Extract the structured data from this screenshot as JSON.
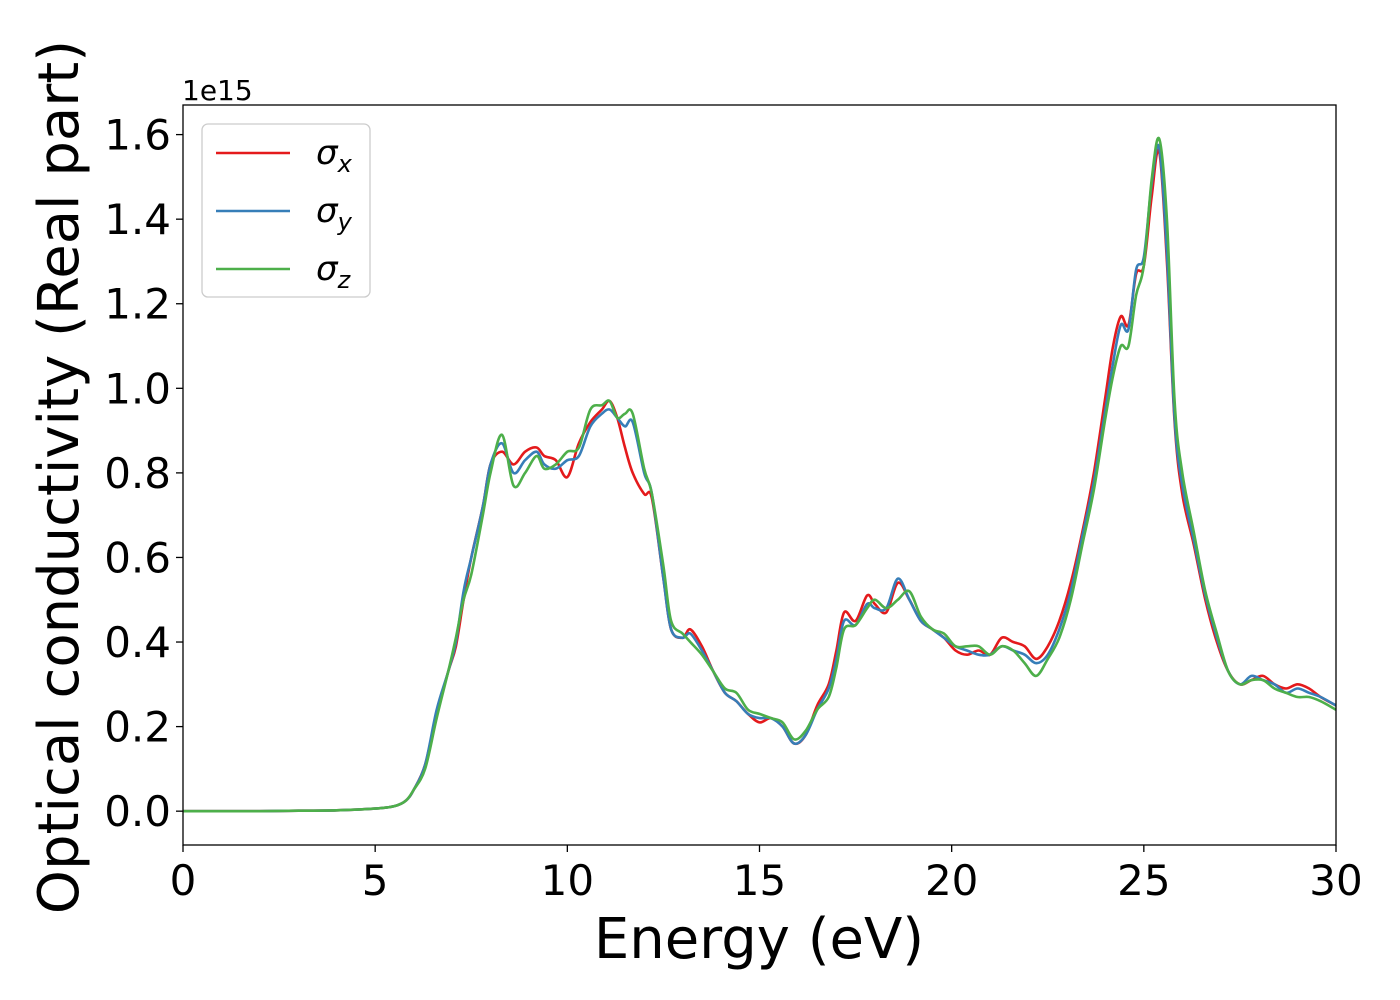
{
  "chart_data": {
    "type": "line",
    "title": "",
    "xlabel": "Energy (eV)",
    "ylabel": "Optical conductivity (Real part)",
    "y_offset_label": "1e15",
    "xlim": [
      0,
      30
    ],
    "ylim": [
      -0.08,
      1.67
    ],
    "x_ticks": [
      0,
      5,
      10,
      15,
      20,
      25,
      30
    ],
    "x_tick_labels": [
      "0",
      "5",
      "10",
      "15",
      "20",
      "25",
      "30"
    ],
    "y_ticks": [
      0.0,
      0.2,
      0.4,
      0.6,
      0.8,
      1.0,
      1.2,
      1.4,
      1.6
    ],
    "y_tick_labels": [
      "0.0",
      "0.2",
      "0.4",
      "0.6",
      "0.8",
      "1.0",
      "1.2",
      "1.4",
      "1.6"
    ],
    "grid": false,
    "legend_position": "top-left",
    "series": [
      {
        "name": "σx",
        "sym": "σ",
        "sub": "x",
        "color": "#e41a1c",
        "x": [
          0,
          1,
          2,
          3,
          4,
          5,
          5.5,
          5.8,
          6.0,
          6.3,
          6.6,
          6.9,
          7.1,
          7.3,
          7.5,
          7.8,
          8.0,
          8.3,
          8.6,
          8.9,
          9.2,
          9.4,
          9.7,
          10.0,
          10.3,
          10.6,
          10.9,
          11.1,
          11.3,
          11.5,
          11.7,
          12.0,
          12.2,
          12.5,
          12.7,
          13.0,
          13.2,
          13.5,
          13.8,
          14.1,
          14.4,
          14.7,
          15.0,
          15.3,
          15.6,
          15.9,
          16.2,
          16.5,
          16.8,
          17.0,
          17.2,
          17.5,
          17.8,
          18.0,
          18.3,
          18.6,
          18.9,
          19.2,
          19.5,
          19.8,
          20.1,
          20.4,
          20.7,
          21.0,
          21.3,
          21.6,
          21.9,
          22.2,
          22.5,
          22.8,
          23.1,
          23.4,
          23.7,
          24.0,
          24.2,
          24.4,
          24.6,
          24.8,
          25.0,
          25.2,
          25.4,
          25.6,
          25.8,
          26.0,
          26.3,
          26.6,
          26.9,
          27.2,
          27.5,
          27.8,
          28.1,
          28.4,
          28.7,
          29.0,
          29.3,
          29.6,
          30.0
        ],
        "y": [
          0.0,
          0.0,
          0.0,
          0.001,
          0.002,
          0.006,
          0.012,
          0.025,
          0.05,
          0.11,
          0.23,
          0.33,
          0.39,
          0.5,
          0.6,
          0.72,
          0.82,
          0.85,
          0.82,
          0.85,
          0.86,
          0.84,
          0.83,
          0.79,
          0.87,
          0.92,
          0.95,
          0.97,
          0.93,
          0.86,
          0.8,
          0.75,
          0.74,
          0.55,
          0.43,
          0.41,
          0.43,
          0.39,
          0.33,
          0.28,
          0.26,
          0.23,
          0.21,
          0.22,
          0.2,
          0.16,
          0.18,
          0.25,
          0.3,
          0.38,
          0.47,
          0.45,
          0.51,
          0.49,
          0.47,
          0.54,
          0.5,
          0.45,
          0.43,
          0.41,
          0.38,
          0.37,
          0.38,
          0.37,
          0.41,
          0.4,
          0.39,
          0.36,
          0.39,
          0.45,
          0.54,
          0.66,
          0.8,
          0.98,
          1.1,
          1.17,
          1.15,
          1.27,
          1.29,
          1.45,
          1.56,
          1.3,
          0.92,
          0.75,
          0.63,
          0.5,
          0.4,
          0.33,
          0.3,
          0.31,
          0.32,
          0.3,
          0.29,
          0.3,
          0.29,
          0.27,
          0.25
        ]
      },
      {
        "name": "σy",
        "sym": "σ",
        "sub": "y",
        "color": "#377eb8",
        "x": [
          0,
          1,
          2,
          3,
          4,
          5,
          5.5,
          5.8,
          6.0,
          6.3,
          6.6,
          6.9,
          7.1,
          7.3,
          7.5,
          7.8,
          8.0,
          8.3,
          8.6,
          8.9,
          9.2,
          9.4,
          9.7,
          10.0,
          10.3,
          10.6,
          10.9,
          11.1,
          11.3,
          11.5,
          11.7,
          12.0,
          12.2,
          12.5,
          12.7,
          13.0,
          13.2,
          13.5,
          13.8,
          14.1,
          14.4,
          14.7,
          15.0,
          15.3,
          15.6,
          15.9,
          16.2,
          16.5,
          16.8,
          17.0,
          17.2,
          17.5,
          17.8,
          18.0,
          18.3,
          18.6,
          18.9,
          19.2,
          19.5,
          19.8,
          20.1,
          20.4,
          20.7,
          21.0,
          21.3,
          21.6,
          21.9,
          22.2,
          22.5,
          22.8,
          23.1,
          23.4,
          23.7,
          24.0,
          24.2,
          24.4,
          24.6,
          24.8,
          25.0,
          25.2,
          25.4,
          25.6,
          25.8,
          26.0,
          26.3,
          26.6,
          26.9,
          27.2,
          27.5,
          27.8,
          28.1,
          28.4,
          28.7,
          29.0,
          29.3,
          29.6,
          30.0
        ],
        "y": [
          0.0,
          0.0,
          0.0,
          0.001,
          0.002,
          0.006,
          0.012,
          0.025,
          0.05,
          0.11,
          0.24,
          0.33,
          0.4,
          0.52,
          0.6,
          0.72,
          0.82,
          0.87,
          0.8,
          0.83,
          0.85,
          0.82,
          0.81,
          0.83,
          0.84,
          0.91,
          0.94,
          0.95,
          0.93,
          0.91,
          0.92,
          0.8,
          0.75,
          0.55,
          0.43,
          0.41,
          0.42,
          0.38,
          0.33,
          0.28,
          0.26,
          0.23,
          0.22,
          0.22,
          0.2,
          0.16,
          0.18,
          0.24,
          0.29,
          0.36,
          0.45,
          0.44,
          0.49,
          0.48,
          0.48,
          0.55,
          0.5,
          0.45,
          0.43,
          0.41,
          0.39,
          0.38,
          0.37,
          0.37,
          0.39,
          0.38,
          0.37,
          0.35,
          0.37,
          0.43,
          0.52,
          0.65,
          0.78,
          0.95,
          1.06,
          1.15,
          1.14,
          1.28,
          1.31,
          1.48,
          1.57,
          1.32,
          0.93,
          0.77,
          0.64,
          0.51,
          0.41,
          0.33,
          0.3,
          0.32,
          0.31,
          0.3,
          0.28,
          0.29,
          0.28,
          0.27,
          0.25
        ]
      },
      {
        "name": "σz",
        "sym": "σ",
        "sub": "z",
        "color": "#4daf4a",
        "x": [
          0,
          1,
          2,
          3,
          4,
          5,
          5.5,
          5.8,
          6.0,
          6.3,
          6.6,
          6.9,
          7.1,
          7.3,
          7.5,
          7.8,
          8.0,
          8.3,
          8.6,
          8.9,
          9.2,
          9.4,
          9.7,
          10.0,
          10.3,
          10.6,
          10.9,
          11.1,
          11.3,
          11.5,
          11.7,
          12.0,
          12.2,
          12.5,
          12.7,
          13.0,
          13.2,
          13.5,
          13.8,
          14.1,
          14.4,
          14.7,
          15.0,
          15.3,
          15.6,
          15.9,
          16.2,
          16.5,
          16.8,
          17.0,
          17.2,
          17.5,
          17.8,
          18.0,
          18.3,
          18.6,
          18.9,
          19.2,
          19.5,
          19.8,
          20.1,
          20.4,
          20.7,
          21.0,
          21.3,
          21.6,
          21.9,
          22.2,
          22.5,
          22.8,
          23.1,
          23.4,
          23.7,
          24.0,
          24.2,
          24.4,
          24.6,
          24.8,
          25.0,
          25.2,
          25.4,
          25.6,
          25.8,
          26.0,
          26.3,
          26.6,
          26.9,
          27.2,
          27.5,
          27.8,
          28.1,
          28.4,
          28.7,
          29.0,
          29.3,
          29.6,
          30.0
        ],
        "y": [
          0.0,
          0.0,
          0.0,
          0.001,
          0.002,
          0.006,
          0.012,
          0.025,
          0.05,
          0.1,
          0.22,
          0.33,
          0.41,
          0.5,
          0.56,
          0.7,
          0.8,
          0.89,
          0.77,
          0.8,
          0.84,
          0.81,
          0.82,
          0.85,
          0.86,
          0.95,
          0.96,
          0.97,
          0.93,
          0.94,
          0.94,
          0.81,
          0.75,
          0.58,
          0.45,
          0.42,
          0.4,
          0.37,
          0.33,
          0.29,
          0.28,
          0.24,
          0.23,
          0.22,
          0.21,
          0.17,
          0.19,
          0.24,
          0.27,
          0.34,
          0.43,
          0.44,
          0.48,
          0.5,
          0.48,
          0.5,
          0.52,
          0.46,
          0.43,
          0.42,
          0.39,
          0.39,
          0.39,
          0.37,
          0.39,
          0.38,
          0.35,
          0.32,
          0.36,
          0.41,
          0.5,
          0.63,
          0.76,
          0.93,
          1.03,
          1.1,
          1.1,
          1.22,
          1.29,
          1.49,
          1.59,
          1.4,
          0.97,
          0.8,
          0.66,
          0.52,
          0.42,
          0.33,
          0.3,
          0.31,
          0.31,
          0.29,
          0.28,
          0.27,
          0.27,
          0.26,
          0.24
        ]
      }
    ]
  }
}
